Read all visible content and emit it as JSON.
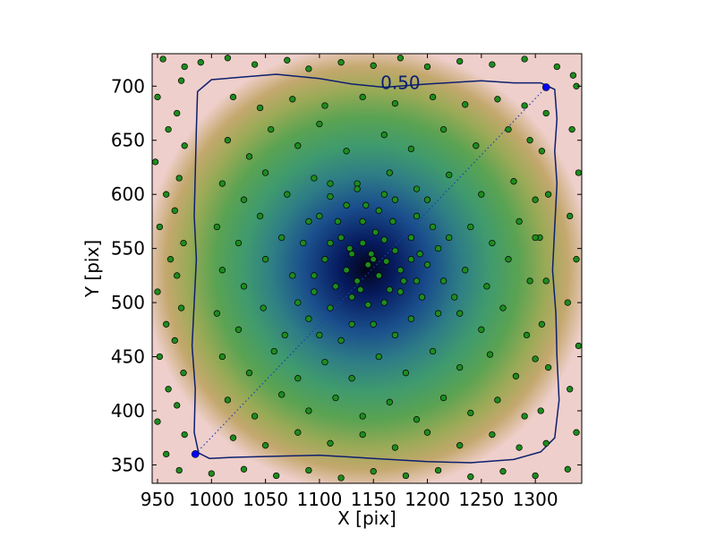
{
  "chart_data": {
    "type": "scatter",
    "title": "",
    "xlabel": "X [pix]",
    "ylabel": "Y [pix]",
    "xlim": [
      945,
      1343
    ],
    "ylim": [
      333,
      730
    ],
    "xticks": [
      950,
      1000,
      1050,
      1100,
      1150,
      1200,
      1250,
      1300
    ],
    "yticks": [
      350,
      400,
      450,
      500,
      550,
      600,
      650,
      700
    ],
    "background": {
      "kind": "density heatmap",
      "center": [
        1145,
        530
      ],
      "colormap": "gist_earth"
    },
    "contour": {
      "level_label": "0.50",
      "label_position": [
        1175,
        703
      ],
      "color": "#0d1f6e",
      "points": [
        [
          1000,
          706
        ],
        [
          1060,
          711
        ],
        [
          1100,
          707
        ],
        [
          1130,
          702
        ],
        [
          1160,
          699
        ],
        [
          1200,
          702
        ],
        [
          1250,
          705
        ],
        [
          1280,
          703
        ],
        [
          1305,
          703
        ],
        [
          1318,
          697
        ],
        [
          1320,
          670
        ],
        [
          1318,
          640
        ],
        [
          1320,
          610
        ],
        [
          1318,
          570
        ],
        [
          1316,
          530
        ],
        [
          1319,
          490
        ],
        [
          1320,
          450
        ],
        [
          1322,
          410
        ],
        [
          1318,
          375
        ],
        [
          1305,
          362
        ],
        [
          1280,
          355
        ],
        [
          1240,
          352
        ],
        [
          1200,
          353
        ],
        [
          1150,
          356
        ],
        [
          1100,
          359
        ],
        [
          1060,
          358
        ],
        [
          1020,
          357
        ],
        [
          998,
          356
        ],
        [
          988,
          361
        ],
        [
          984,
          380
        ],
        [
          985,
          420
        ],
        [
          982,
          460
        ],
        [
          984,
          500
        ],
        [
          986,
          540
        ],
        [
          984,
          580
        ],
        [
          985,
          620
        ],
        [
          986,
          660
        ],
        [
          987,
          695
        ]
      ]
    },
    "diagonal_line": {
      "from": [
        985,
        360
      ],
      "to": [
        1310,
        699
      ],
      "style": "dotted",
      "color": "#1a3fb3"
    },
    "endpoints": [
      {
        "x": 985,
        "y": 360,
        "color": "#0000ff"
      },
      {
        "x": 1310,
        "y": 699,
        "color": "#0000ff"
      }
    ],
    "points": {
      "color": "#1e8c1e",
      "edge_color": "#000000",
      "values": [
        [
          955,
          725
        ],
        [
          975,
          718
        ],
        [
          990,
          722
        ],
        [
          1015,
          726
        ],
        [
          1040,
          720
        ],
        [
          1070,
          724
        ],
        [
          1090,
          716
        ],
        [
          1120,
          722
        ],
        [
          1150,
          719
        ],
        [
          1175,
          726
        ],
        [
          1200,
          718
        ],
        [
          1230,
          723
        ],
        [
          1260,
          720
        ],
        [
          1290,
          725
        ],
        [
          1320,
          718
        ],
        [
          1335,
          710
        ],
        [
          950,
          690
        ],
        [
          960,
          660
        ],
        [
          948,
          630
        ],
        [
          958,
          600
        ],
        [
          952,
          570
        ],
        [
          962,
          540
        ],
        [
          950,
          510
        ],
        [
          958,
          480
        ],
        [
          952,
          450
        ],
        [
          960,
          420
        ],
        [
          950,
          390
        ],
        [
          958,
          360
        ],
        [
          970,
          345
        ],
        [
          1000,
          342
        ],
        [
          1030,
          346
        ],
        [
          1060,
          340
        ],
        [
          1090,
          345
        ],
        [
          1120,
          338
        ],
        [
          1150,
          344
        ],
        [
          1180,
          340
        ],
        [
          1210,
          345
        ],
        [
          1240,
          339
        ],
        [
          1270,
          344
        ],
        [
          1300,
          340
        ],
        [
          1330,
          346
        ],
        [
          1338,
          380
        ],
        [
          1332,
          420
        ],
        [
          1340,
          460
        ],
        [
          1330,
          500
        ],
        [
          1338,
          540
        ],
        [
          1332,
          580
        ],
        [
          1340,
          620
        ],
        [
          1334,
          660
        ],
        [
          1338,
          700
        ],
        [
          972,
          705
        ],
        [
          968,
          675
        ],
        [
          975,
          645
        ],
        [
          970,
          615
        ],
        [
          966,
          585
        ],
        [
          974,
          555
        ],
        [
          968,
          525
        ],
        [
          972,
          495
        ],
        [
          966,
          465
        ],
        [
          974,
          435
        ],
        [
          968,
          405
        ],
        [
          975,
          378
        ],
        [
          1310,
          675
        ],
        [
          1306,
          640
        ],
        [
          1312,
          600
        ],
        [
          1304,
          560
        ],
        [
          1310,
          520
        ],
        [
          1306,
          480
        ],
        [
          1312,
          440
        ],
        [
          1305,
          400
        ],
        [
          1310,
          370
        ],
        [
          1020,
          690
        ],
        [
          1045,
          680
        ],
        [
          1075,
          688
        ],
        [
          1105,
          682
        ],
        [
          1140,
          690
        ],
        [
          1170,
          684
        ],
        [
          1205,
          690
        ],
        [
          1235,
          683
        ],
        [
          1265,
          688
        ],
        [
          1290,
          682
        ],
        [
          1015,
          650
        ],
        [
          1035,
          635
        ],
        [
          1055,
          660
        ],
        [
          1080,
          645
        ],
        [
          1100,
          665
        ],
        [
          1125,
          640
        ],
        [
          1160,
          655
        ],
        [
          1185,
          642
        ],
        [
          1215,
          660
        ],
        [
          1245,
          645
        ],
        [
          1275,
          660
        ],
        [
          1295,
          650
        ],
        [
          1010,
          610
        ],
        [
          1030,
          595
        ],
        [
          1050,
          620
        ],
        [
          1070,
          600
        ],
        [
          1095,
          615
        ],
        [
          1110,
          598
        ],
        [
          1135,
          610
        ],
        [
          1165,
          620
        ],
        [
          1190,
          605
        ],
        [
          1220,
          618
        ],
        [
          1250,
          600
        ],
        [
          1280,
          612
        ],
        [
          1300,
          595
        ],
        [
          1005,
          570
        ],
        [
          1025,
          555
        ],
        [
          1045,
          580
        ],
        [
          1065,
          560
        ],
        [
          1090,
          575
        ],
        [
          1110,
          555
        ],
        [
          1240,
          570
        ],
        [
          1260,
          555
        ],
        [
          1285,
          575
        ],
        [
          1300,
          560
        ],
        [
          1010,
          530
        ],
        [
          1030,
          515
        ],
        [
          1050,
          540
        ],
        [
          1075,
          525
        ],
        [
          1095,
          510
        ],
        [
          1235,
          530
        ],
        [
          1255,
          515
        ],
        [
          1275,
          540
        ],
        [
          1295,
          520
        ],
        [
          1005,
          490
        ],
        [
          1025,
          475
        ],
        [
          1048,
          495
        ],
        [
          1068,
          470
        ],
        [
          1090,
          485
        ],
        [
          1230,
          490
        ],
        [
          1250,
          475
        ],
        [
          1270,
          495
        ],
        [
          1292,
          470
        ],
        [
          1010,
          450
        ],
        [
          1035,
          435
        ],
        [
          1058,
          455
        ],
        [
          1080,
          430
        ],
        [
          1105,
          445
        ],
        [
          1130,
          430
        ],
        [
          1155,
          450
        ],
        [
          1180,
          435
        ],
        [
          1205,
          455
        ],
        [
          1230,
          440
        ],
        [
          1258,
          452
        ],
        [
          1282,
          432
        ],
        [
          1300,
          448
        ],
        [
          1015,
          410
        ],
        [
          1040,
          395
        ],
        [
          1065,
          415
        ],
        [
          1090,
          400
        ],
        [
          1115,
          412
        ],
        [
          1140,
          395
        ],
        [
          1165,
          408
        ],
        [
          1190,
          392
        ],
        [
          1215,
          412
        ],
        [
          1240,
          398
        ],
        [
          1265,
          410
        ],
        [
          1290,
          395
        ],
        [
          1020,
          375
        ],
        [
          1050,
          368
        ],
        [
          1080,
          380
        ],
        [
          1110,
          370
        ],
        [
          1140,
          378
        ],
        [
          1170,
          366
        ],
        [
          1200,
          380
        ],
        [
          1230,
          368
        ],
        [
          1260,
          378
        ],
        [
          1285,
          366
        ],
        [
          1120,
          560
        ],
        [
          1130,
          545
        ],
        [
          1140,
          555
        ],
        [
          1150,
          540
        ],
        [
          1160,
          558
        ],
        [
          1170,
          548
        ],
        [
          1125,
          530
        ],
        [
          1135,
          520
        ],
        [
          1145,
          535
        ],
        [
          1155,
          525
        ],
        [
          1165,
          512
        ],
        [
          1175,
          530
        ],
        [
          1185,
          540
        ],
        [
          1130,
          505
        ],
        [
          1145,
          498
        ],
        [
          1160,
          500
        ],
        [
          1175,
          510
        ],
        [
          1190,
          520
        ],
        [
          1115,
          515
        ],
        [
          1105,
          540
        ],
        [
          1185,
          560
        ],
        [
          1200,
          535
        ],
        [
          1210,
          550
        ],
        [
          1195,
          505
        ],
        [
          1110,
          495
        ],
        [
          1140,
          575
        ],
        [
          1155,
          585
        ],
        [
          1125,
          590
        ],
        [
          1170,
          595
        ],
        [
          1190,
          580
        ],
        [
          1100,
          580
        ],
        [
          1205,
          570
        ],
        [
          1095,
          525
        ],
        [
          1215,
          520
        ],
        [
          1150,
          480
        ],
        [
          1170,
          470
        ],
        [
          1130,
          480
        ],
        [
          1120,
          465
        ],
        [
          1185,
          485
        ],
        [
          1210,
          490
        ],
        [
          1100,
          470
        ],
        [
          1225,
          505
        ],
        [
          1080,
          500
        ],
        [
          1220,
          560
        ],
        [
          1085,
          555
        ],
        [
          1160,
          600
        ],
        [
          1135,
          605
        ],
        [
          1200,
          595
        ],
        [
          1110,
          610
        ],
        [
          1178,
          520
        ],
        [
          1148,
          545
        ],
        [
          1138,
          512
        ],
        [
          1162,
          538
        ],
        [
          1152,
          565
        ],
        [
          1128,
          550
        ],
        [
          1168,
          575
        ],
        [
          1143,
          590
        ],
        [
          1117,
          575
        ],
        [
          1193,
          545
        ]
      ]
    }
  }
}
